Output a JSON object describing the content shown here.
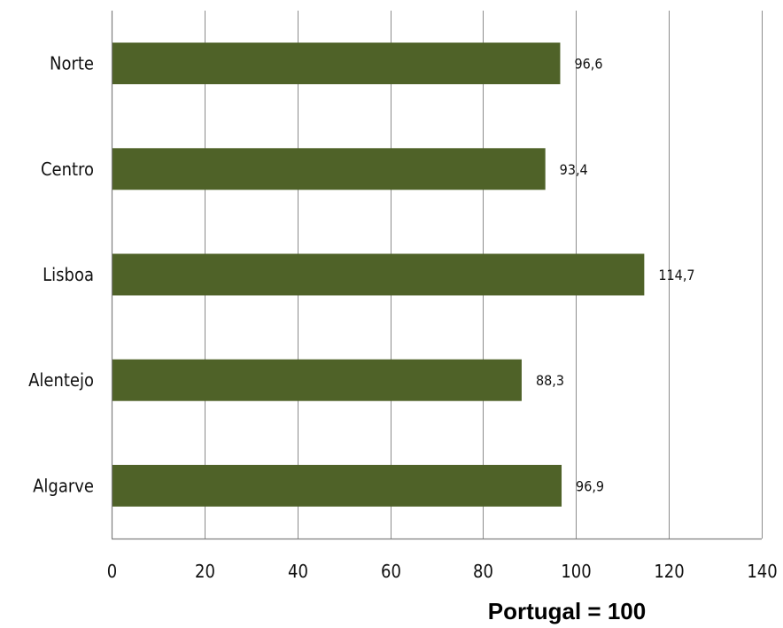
{
  "chart_data": {
    "type": "bar",
    "orientation": "horizontal",
    "categories": [
      "Norte",
      "Centro",
      "Lisboa",
      "Alentejo",
      "Algarve"
    ],
    "values": [
      96.6,
      93.4,
      114.7,
      88.3,
      96.9
    ],
    "value_labels": [
      "96,6",
      "93,4",
      "114,7",
      "88,3",
      "96,9"
    ],
    "xlim": [
      0,
      140
    ],
    "xticks": [
      0,
      20,
      40,
      60,
      80,
      100,
      120,
      140
    ],
    "xtick_labels": [
      "0",
      "20",
      "40",
      "60",
      "80",
      "100",
      "120",
      "140"
    ],
    "grid": "vertical",
    "bar_color": "#4f6228",
    "note": "Portugal = 100"
  }
}
